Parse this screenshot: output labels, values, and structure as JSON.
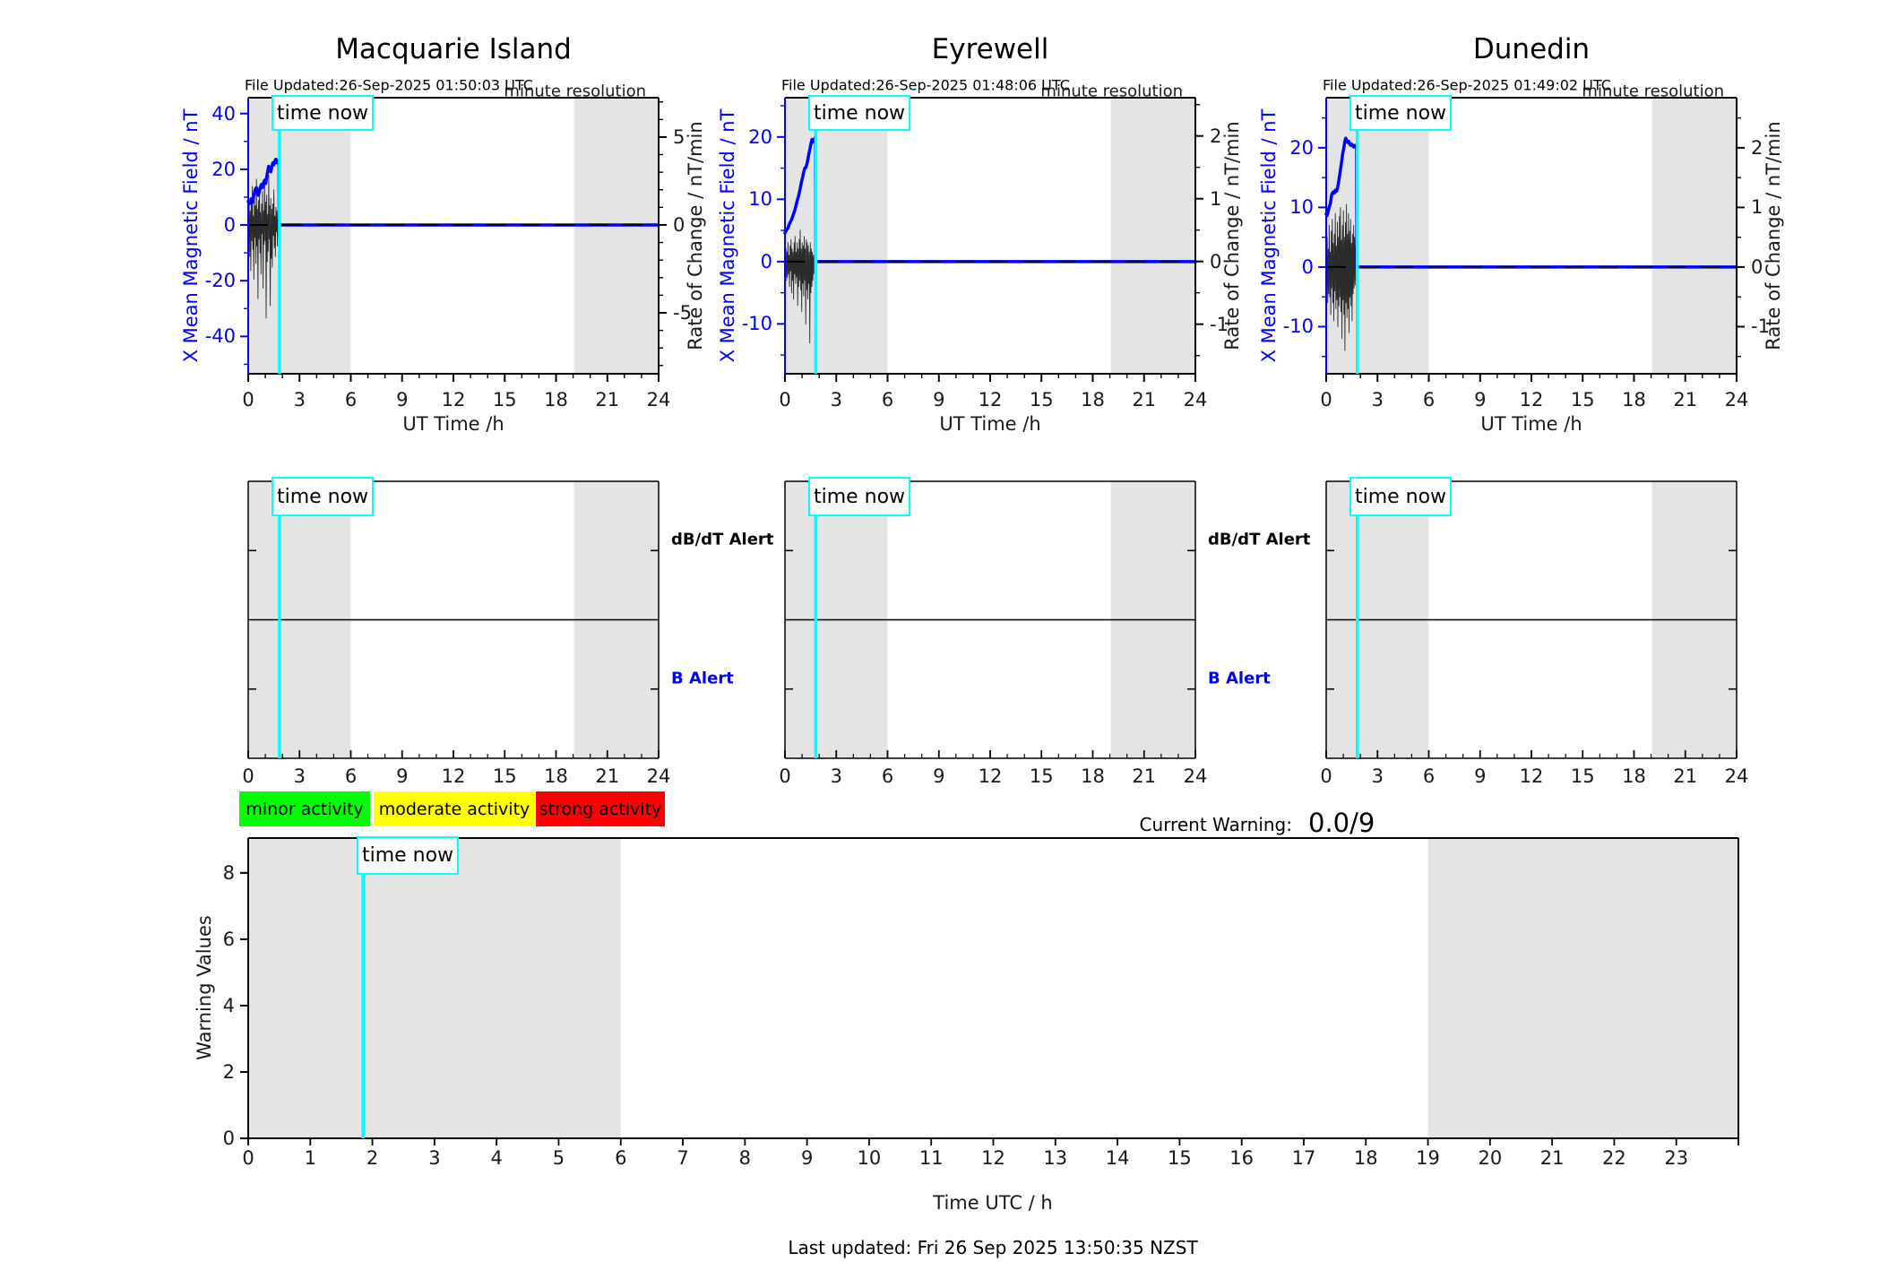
{
  "time_now_label": "time now",
  "colors": {
    "series_blue": "#0000ff",
    "rate_black": "#2b2b2b",
    "time_now_cyan": "#00ffff",
    "night_band_gray": "#e4e4e4",
    "axis_black": "#000000",
    "legend_green": "#00ff00",
    "legend_yellow": "#ffff00",
    "legend_red": "#ff0000"
  },
  "alert_row": {
    "dbdt_label": "dB/dT Alert",
    "b_label": "B Alert",
    "xticks": [
      0,
      3,
      6,
      9,
      12,
      15,
      18,
      21,
      24
    ],
    "night_bands": [
      [
        0,
        6
      ],
      [
        19.05,
        24
      ]
    ]
  },
  "legend": {
    "items": [
      {
        "label": "minor activity",
        "color": "#00ff00"
      },
      {
        "label": "moderate activity",
        "color": "#ffff00"
      },
      {
        "label": "strong activity",
        "color": "#ff0000"
      }
    ]
  },
  "current_warning": {
    "label": "Current Warning:",
    "value": "0.0/9"
  },
  "footer": {
    "last_updated": "Last updated: Fri 26 Sep 2025 13:50:35 NZST"
  },
  "chart_data": [
    {
      "type": "line",
      "title": "Macquarie Island",
      "xlabel": "UT Time /h",
      "ylabel": "X Mean Magnetic Field / nT",
      "ylabel_right": "Rate of Change / nT/min",
      "annotations": {
        "file_updated": "File Updated:26-Sep-2025 01:50:03 UTC",
        "resolution": "minute resolution"
      },
      "xlim": [
        0,
        24
      ],
      "xticks": [
        0,
        3,
        6,
        9,
        12,
        15,
        18,
        21,
        24
      ],
      "ylim": [
        -53.4,
        45.7
      ],
      "yticks": [
        -40,
        -20,
        0,
        20,
        40
      ],
      "ytick_minor_step": 10,
      "ylim_right": [
        -8.47,
        7.24
      ],
      "yticks_right": [
        -5,
        0,
        5
      ],
      "ytick_right_minor_step": 1,
      "night_bands": [
        [
          0,
          6
        ],
        [
          19.05,
          24
        ]
      ],
      "time_now": 1.83,
      "series": [
        {
          "name": "x-mean-field",
          "axis": "left",
          "x": [
            0,
            0.06,
            0.12,
            0.18,
            0.24,
            0.3,
            0.36,
            0.42,
            0.48,
            0.54,
            0.6,
            0.66,
            0.72,
            0.78,
            0.84,
            0.9,
            0.96,
            1.02,
            1.08,
            1.14,
            1.2,
            1.26,
            1.32,
            1.38,
            1.44,
            1.5,
            1.56,
            1.62,
            1.68,
            1.74,
            1.8,
            1.81,
            24
          ],
          "y": [
            8.5,
            7.6,
            8.2,
            9.4,
            8.1,
            9.8,
            11.4,
            12.9,
            13.4,
            11.8,
            10.7,
            12.2,
            13.8,
            14.6,
            13.4,
            15.2,
            16.1,
            14.9,
            17.2,
            19.4,
            21.1,
            20.2,
            19.1,
            20.9,
            22.3,
            21.6,
            22.9,
            23.6,
            22.4,
            23.1,
            22.5,
            0,
            0
          ]
        },
        {
          "name": "rate-of-change",
          "axis": "right",
          "x_end": 1.8,
          "y": [
            0.3,
            -0.5,
            1.2,
            -1.8,
            0.8,
            -2.6,
            1.5,
            -0.9,
            2.2,
            -1.4,
            0.5,
            -3.1,
            1.8,
            -0.7,
            1.1,
            -2.2,
            2.6,
            -1.2,
            0.9,
            -4.2,
            1.4,
            -0.8,
            2.1,
            -1.6,
            0.7,
            -2.8,
            1.2,
            -0.5,
            1.9,
            -3.6,
            0.8,
            -1.1,
            2.4,
            -0.9,
            1.3,
            -5.3,
            1.7,
            -2.1,
            0.6,
            -1.5,
            2.8,
            -0.8,
            1.1,
            -4.6,
            1.5,
            -1.9,
            0.9,
            -2.4,
            1.2,
            -0.6,
            2.0,
            -1.3,
            0.5,
            -1.8,
            1.0,
            -0.4,
            0.8,
            -1.2,
            0.4,
            -0.7,
            0.2
          ]
        }
      ]
    },
    {
      "type": "line",
      "title": "Eyrewell",
      "xlabel": "UT Time /h",
      "ylabel": "X Mean Magnetic Field / nT",
      "ylabel_right": "Rate of Change / nT/min",
      "annotations": {
        "file_updated": "File Updated:26-Sep-2025 01:48:06 UTC",
        "resolution": "minute resolution"
      },
      "xlim": [
        0,
        24
      ],
      "xticks": [
        0,
        3,
        6,
        9,
        12,
        15,
        18,
        21,
        24
      ],
      "ylim": [
        -18.0,
        26.3
      ],
      "yticks": [
        -10,
        0,
        10,
        20
      ],
      "ytick_minor_step": 5,
      "ylim_right": [
        -1.79,
        2.61
      ],
      "yticks_right": [
        -1,
        0,
        1,
        2
      ],
      "ytick_right_minor_step": 0.5,
      "night_bands": [
        [
          0,
          6
        ],
        [
          19.05,
          24
        ]
      ],
      "time_now": 1.8,
      "series": [
        {
          "name": "x-mean-field",
          "axis": "left",
          "x": [
            0,
            0.08,
            0.16,
            0.24,
            0.32,
            0.4,
            0.48,
            0.56,
            0.64,
            0.72,
            0.8,
            0.88,
            0.96,
            1.04,
            1.1,
            1.16,
            1.22,
            1.28,
            1.34,
            1.4,
            1.46,
            1.52,
            1.58,
            1.64,
            1.7,
            1.74,
            1.78,
            1.79,
            24
          ],
          "y": [
            4.6,
            5.0,
            5.3,
            5.9,
            6.4,
            6.8,
            7.5,
            8.1,
            8.9,
            9.8,
            10.6,
            11.6,
            12.7,
            13.6,
            14.4,
            15.0,
            15.1,
            15.6,
            16.4,
            17.3,
            18.1,
            18.9,
            19.6,
            19.2,
            19.5,
            19.8,
            19.3,
            0,
            0
          ]
        },
        {
          "name": "rate-of-change",
          "axis": "right",
          "x_end": 1.78,
          "y": [
            0.1,
            -0.15,
            0.2,
            -0.3,
            0.15,
            -0.25,
            0.3,
            -0.2,
            0.1,
            -0.4,
            0.25,
            -0.15,
            0.35,
            -0.5,
            0.2,
            -0.3,
            0.15,
            -0.6,
            0.3,
            -0.2,
            0.4,
            -0.35,
            0.15,
            -0.25,
            0.3,
            -0.7,
            0.2,
            -0.4,
            0.35,
            -0.3,
            0.5,
            -0.45,
            0.2,
            -0.8,
            0.3,
            -0.35,
            0.25,
            -0.55,
            0.4,
            -0.3,
            0.2,
            -1.0,
            0.35,
            -0.45,
            0.3,
            -0.6,
            0.25,
            -0.35,
            0.15,
            -1.3,
            0.3,
            -0.5,
            0.2,
            -0.4,
            0.15,
            -0.3,
            0.1,
            -0.2,
            0.1,
            -0.15,
            0.05
          ]
        }
      ]
    },
    {
      "type": "line",
      "title": "Dunedin",
      "xlabel": "UT Time /h",
      "ylabel": "X Mean Magnetic Field / nT",
      "ylabel_right": "Rate of Change / nT/min",
      "annotations": {
        "file_updated": "File Updated:26-Sep-2025 01:49:02 UTC",
        "resolution": "minute resolution"
      },
      "xlim": [
        0,
        24
      ],
      "xticks": [
        0,
        3,
        6,
        9,
        12,
        15,
        18,
        21,
        24
      ],
      "ylim": [
        -17.9,
        28.4
      ],
      "yticks": [
        -10,
        0,
        10,
        20
      ],
      "ytick_minor_step": 5,
      "ylim_right": [
        -1.79,
        2.84
      ],
      "yticks_right": [
        -1,
        0,
        1,
        2
      ],
      "ytick_right_minor_step": 0.5,
      "night_bands": [
        [
          0,
          6
        ],
        [
          19.05,
          24
        ]
      ],
      "time_now": 1.82,
      "series": [
        {
          "name": "x-mean-field",
          "axis": "left",
          "x": [
            0,
            0.06,
            0.12,
            0.18,
            0.24,
            0.3,
            0.36,
            0.42,
            0.48,
            0.54,
            0.6,
            0.66,
            0.72,
            0.78,
            0.84,
            0.9,
            0.96,
            1.02,
            1.08,
            1.14,
            1.2,
            1.26,
            1.32,
            1.38,
            1.44,
            1.5,
            1.56,
            1.62,
            1.68,
            1.74,
            1.78,
            1.79,
            24
          ],
          "y": [
            8.9,
            8.6,
            9.4,
            10.1,
            10.6,
            11.8,
            12.4,
            12.6,
            12.4,
            12.9,
            12.7,
            13.2,
            14.1,
            15.3,
            16.4,
            17.6,
            18.9,
            19.8,
            20.9,
            21.6,
            21.2,
            20.9,
            21.1,
            20.6,
            20.4,
            20.6,
            20.3,
            20.1,
            20.4,
            20.2,
            20.0,
            0,
            0
          ]
        },
        {
          "name": "rate-of-change",
          "axis": "right",
          "x_end": 1.78,
          "y": [
            0.2,
            -0.3,
            0.5,
            -0.6,
            0.3,
            -0.45,
            0.7,
            -0.5,
            0.25,
            -0.8,
            0.6,
            -0.35,
            0.8,
            -0.6,
            0.4,
            -0.9,
            0.55,
            -0.4,
            0.9,
            -0.7,
            0.35,
            -0.55,
            0.75,
            -1.0,
            0.5,
            -0.65,
            0.85,
            -0.5,
            1.0,
            -0.75,
            0.45,
            -1.2,
            0.7,
            -0.55,
            0.95,
            -0.8,
            0.5,
            -1.4,
            0.75,
            -0.6,
            1.05,
            -0.85,
            0.55,
            -0.7,
            0.9,
            -1.1,
            0.6,
            -0.5,
            0.8,
            -0.65,
            0.4,
            -0.9,
            0.55,
            -0.45,
            0.7,
            -0.35,
            0.5,
            -0.3,
            0.35,
            -0.25,
            0.2
          ]
        }
      ]
    },
    {
      "type": "line",
      "title": "",
      "xlabel": "Time UTC / h",
      "ylabel": "Warning Values",
      "xlim": [
        0,
        24
      ],
      "xticks": [
        0,
        1,
        2,
        3,
        4,
        5,
        6,
        7,
        8,
        9,
        10,
        11,
        12,
        13,
        14,
        15,
        16,
        17,
        18,
        19,
        20,
        21,
        22,
        23
      ],
      "ylim": [
        0,
        9.05
      ],
      "yticks": [
        0,
        2,
        4,
        6,
        8
      ],
      "night_bands": [
        [
          0,
          6
        ],
        [
          19,
          24
        ]
      ],
      "time_now": 1.85,
      "series": []
    }
  ]
}
